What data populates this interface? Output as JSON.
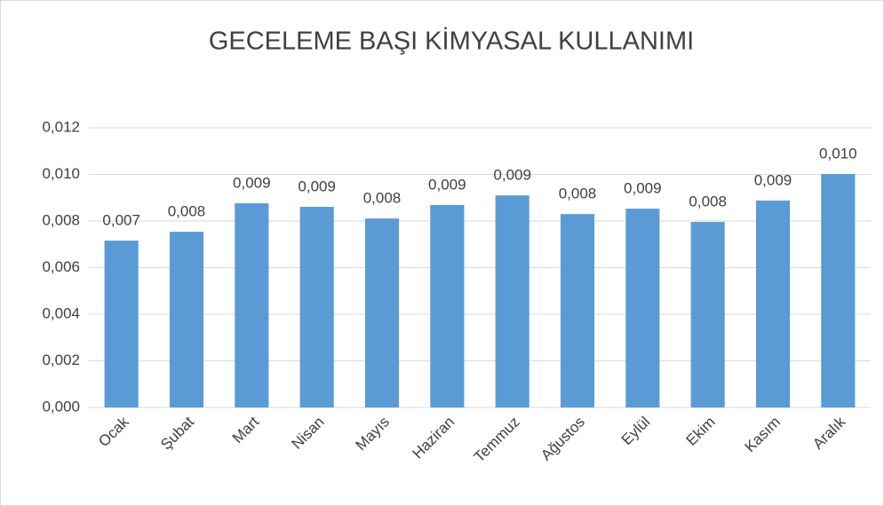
{
  "chart_data": {
    "type": "bar",
    "title": "GECELEME BAŞI KİMYASAL KULLANIMI",
    "categories": [
      "Ocak",
      "Şubat",
      "Mart",
      "Nisan",
      "Mayıs",
      "Haziran",
      "Temmuz",
      "Ağustos",
      "Eylül",
      "Ekim",
      "Kasım",
      "Aralık"
    ],
    "values": [
      0.00716,
      0.00754,
      0.00876,
      0.00861,
      0.00811,
      0.00869,
      0.0091,
      0.0083,
      0.00853,
      0.00796,
      0.00888,
      0.01002
    ],
    "value_labels": [
      "0,007",
      "0,008",
      "0,009",
      "0,009",
      "0,008",
      "0,009",
      "0,009",
      "0,008",
      "0,009",
      "0,008",
      "0,009",
      "0,010"
    ],
    "color": "#5b9bd5",
    "ylim": [
      0,
      0.012
    ],
    "yticks": [
      {
        "value": 0,
        "label": "0,000"
      },
      {
        "value": 0.002,
        "label": "0,002"
      },
      {
        "value": 0.004,
        "label": "0,004"
      },
      {
        "value": 0.006,
        "label": "0,006"
      },
      {
        "value": 0.008,
        "label": "0,008"
      },
      {
        "value": 0.01,
        "label": "0,010"
      },
      {
        "value": 0.012,
        "label": "0,012"
      }
    ],
    "grid": true
  }
}
